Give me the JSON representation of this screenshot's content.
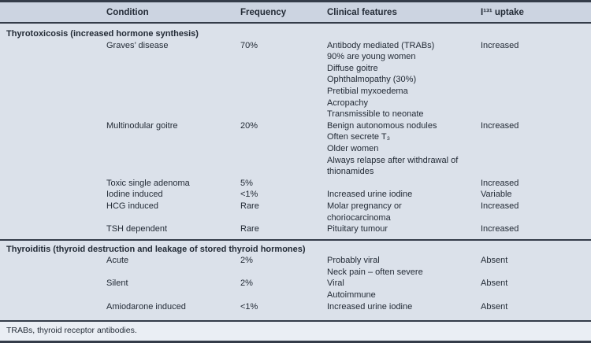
{
  "theme": {
    "rule": "#343c49",
    "header_bg": "#ccd4e1",
    "body_bg": "#dbe1ea",
    "footer_bg": "#eaeef4",
    "text": "#232b36"
  },
  "table": {
    "columns": [
      "Condition",
      "Frequency",
      "Clinical features",
      "I¹³¹ uptake"
    ],
    "sections": [
      {
        "title": "Thyrotoxicosis (increased hormone synthesis)",
        "rows": [
          {
            "condition": "Graves’ disease",
            "frequency": "70%",
            "features": [
              "Antibody mediated (TRABs)",
              "90% are young women",
              "Diffuse goitre",
              "Ophthalmopathy (30%)",
              "Pretibial myxoedema",
              "Acropachy",
              "Transmissible to neonate"
            ],
            "uptake": "Increased"
          },
          {
            "condition": "Multinodular goitre",
            "frequency": "20%",
            "features": [
              "Benign autonomous nodules",
              "Often secrete T₃",
              "Older women",
              "Always relapse after withdrawal of thionamides"
            ],
            "uptake": "Increased"
          },
          {
            "condition": "Toxic single adenoma",
            "frequency": "5%",
            "features": [],
            "uptake": "Increased"
          },
          {
            "condition": "Iodine induced",
            "frequency": "<1%",
            "features": [
              "Increased urine iodine"
            ],
            "uptake": "Variable"
          },
          {
            "condition": "HCG induced",
            "frequency": "Rare",
            "features": [
              "Molar pregnancy or choriocarcinoma"
            ],
            "uptake": "Increased"
          },
          {
            "condition": "TSH dependent",
            "frequency": "Rare",
            "features": [
              "Pituitary tumour"
            ],
            "uptake": "Increased"
          }
        ]
      },
      {
        "title": "Thyroiditis (thyroid destruction and leakage of stored thyroid hormones)",
        "rows": [
          {
            "condition": "Acute",
            "frequency": "2%",
            "features": [
              "Probably viral",
              "Neck pain – often severe"
            ],
            "uptake": "Absent"
          },
          {
            "condition": "Silent",
            "frequency": "2%",
            "features": [
              "Viral",
              "Autoimmune"
            ],
            "uptake": "Absent"
          },
          {
            "condition": "Amiodarone induced",
            "frequency": "<1%",
            "features": [
              "Increased urine iodine"
            ],
            "uptake": "Absent"
          }
        ]
      }
    ],
    "footnote": "TRABs, thyroid receptor antibodies."
  }
}
